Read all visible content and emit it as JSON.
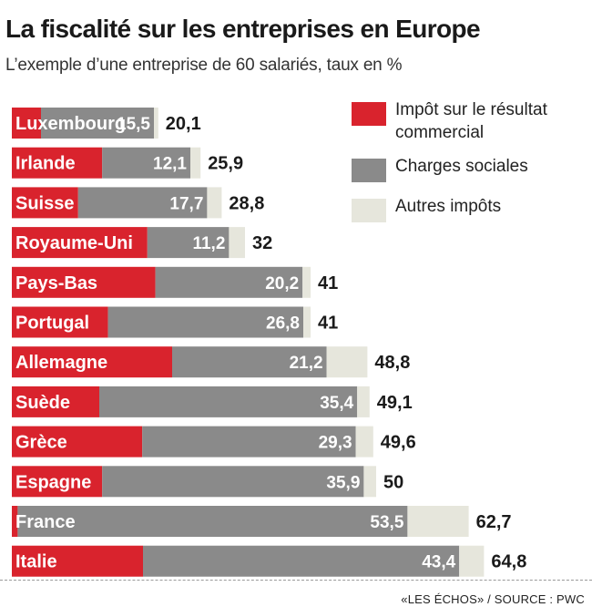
{
  "title": "La fiscalité sur les entreprises en Europe",
  "subtitle": "L’exemple d’une entreprise de 60 salariés, taux en %",
  "source": "«LES ÉCHOS» / SOURCE : PWC",
  "colors": {
    "impot": "#d9232d",
    "charges": "#8a8a8a",
    "autres": "#e6e6dc",
    "label_text": "#ffffff",
    "total_text": "#1a1a1a"
  },
  "legend": [
    {
      "label_lines": [
        "Impôt sur le résultat",
        "commercial"
      ],
      "color_key": "impot"
    },
    {
      "label_lines": [
        "Charges sociales"
      ],
      "color_key": "charges"
    },
    {
      "label_lines": [
        "Autres impôts"
      ],
      "color_key": "autres"
    }
  ],
  "chart_data": {
    "type": "bar",
    "orientation": "horizontal",
    "stacked": true,
    "xlim": [
      0,
      70
    ],
    "grid": false,
    "legend_position": "top-right",
    "categories": [
      "Luxembourg",
      "Irlande",
      "Suisse",
      "Royaume-Uni",
      "Pays-Bas",
      "Portugal",
      "Allemagne",
      "Suède",
      "Grèce",
      "Espagne",
      "France",
      "Italie"
    ],
    "series": [
      {
        "name": "Impôt sur le résultat commercial",
        "values": [
          4.0,
          12.4,
          9.1,
          18.6,
          19.7,
          13.2,
          22.0,
          12.0,
          17.9,
          12.4,
          0.8,
          18.0
        ]
      },
      {
        "name": "Charges sociales",
        "values": [
          15.5,
          12.1,
          17.7,
          11.2,
          20.2,
          26.8,
          21.2,
          35.4,
          29.3,
          35.9,
          53.5,
          43.4
        ]
      },
      {
        "name": "Autres impôts",
        "values": [
          0.6,
          1.4,
          2.0,
          2.2,
          1.1,
          1.0,
          5.6,
          1.7,
          2.4,
          1.7,
          8.4,
          3.4
        ]
      }
    ],
    "charges_labels": [
      "15,5",
      "12,1",
      "17,7",
      "11,2",
      "20,2",
      "26,8",
      "21,2",
      "35,4",
      "29,3",
      "35,9",
      "53,5",
      "43,4"
    ],
    "totals": [
      20.1,
      25.9,
      28.8,
      32,
      41,
      41,
      48.8,
      49.1,
      49.6,
      50,
      62.7,
      64.8
    ],
    "total_labels": [
      "20,1",
      "25,9",
      "28,8",
      "32",
      "41",
      "41",
      "48,8",
      "49,1",
      "49,6",
      "50",
      "62,7",
      "64,8"
    ]
  }
}
